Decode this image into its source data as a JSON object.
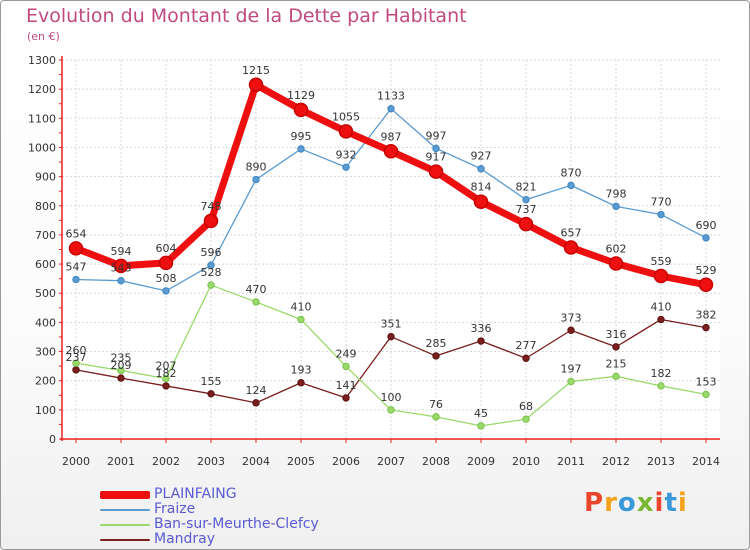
{
  "title": "Evolution du Montant de la Dette par Habitant",
  "unit": "(en €)",
  "logo": {
    "text": "Proxiti",
    "colors": [
      "#e8452c",
      "#f7a21b",
      "#3a9ad9",
      "#7ab834",
      "#e8452c",
      "#3a9ad9",
      "#f7a21b"
    ]
  },
  "chart_data": {
    "type": "line",
    "x": [
      "2000",
      "2001",
      "2002",
      "2003",
      "2004",
      "2005",
      "2006",
      "2007",
      "2008",
      "2009",
      "2010",
      "2011",
      "2012",
      "2013",
      "2014"
    ],
    "ylim": [
      0,
      1300
    ],
    "yticks": [
      0,
      100,
      200,
      300,
      400,
      500,
      600,
      700,
      800,
      900,
      1000,
      1100,
      1200,
      1300
    ],
    "grid": true,
    "legend_position": "bottom-left",
    "series": [
      {
        "name": "PLAINFAING",
        "color": "#ee1010",
        "values": [
          654,
          594,
          604,
          748,
          1215,
          1129,
          1055,
          987,
          917,
          814,
          737,
          657,
          602,
          559,
          529
        ],
        "labels": [
          "654",
          "594",
          "604",
          "748",
          "1215",
          "1129",
          "1055",
          "987",
          "917",
          "814",
          "737",
          "657",
          "602",
          "559",
          "529"
        ]
      },
      {
        "name": "Fraize",
        "color": "#5b9bd0",
        "values": [
          547,
          543,
          508,
          596,
          890,
          995,
          932,
          1133,
          997,
          927,
          821,
          870,
          798,
          770,
          690
        ],
        "labels": [
          "547",
          "543",
          "508",
          "596",
          "890",
          "995",
          "932",
          "1133",
          "997",
          "927",
          "821",
          "870",
          "798",
          "770",
          "690"
        ]
      },
      {
        "name": "Ban-sur-Meurthe-Clefcy",
        "color": "#9ada6a",
        "values": [
          260,
          235,
          207,
          528,
          470,
          410,
          249,
          100,
          76,
          45,
          68,
          197,
          215,
          182,
          153
        ],
        "labels": [
          "260",
          "235",
          "207",
          "528",
          "470",
          "410",
          "249",
          "100",
          "76",
          "45",
          "68",
          "197",
          "215",
          "182",
          "153"
        ]
      },
      {
        "name": "Mandray",
        "color": "#7a1e1e",
        "values": [
          237,
          209,
          182,
          155,
          124,
          193,
          141,
          351,
          285,
          336,
          277,
          373,
          316,
          410,
          382
        ],
        "labels": [
          "237",
          "209",
          "182",
          "155",
          "124",
          "193",
          "141",
          "351",
          "285",
          "336",
          "277",
          "373",
          "316",
          "410",
          "382"
        ]
      }
    ]
  }
}
